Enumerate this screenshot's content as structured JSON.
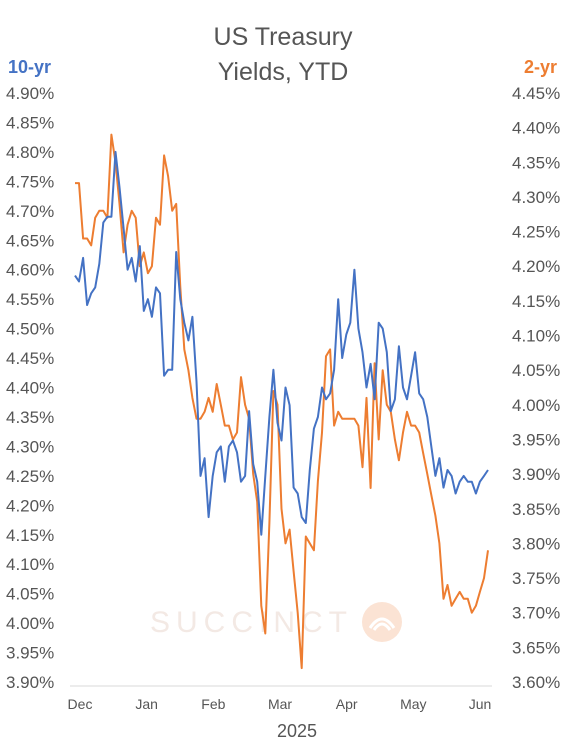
{
  "chart_data": {
    "type": "line",
    "title_lines": [
      "US Treasury",
      "Yields, YTD"
    ],
    "xlabel": "2025",
    "x_ticks": [
      "Dec",
      "Jan",
      "Feb",
      "Mar",
      "Apr",
      "May",
      "Jun"
    ],
    "watermark": "SUCCINCT",
    "left_axis": {
      "title": "10-yr",
      "ylim": [
        3.9,
        4.9
      ],
      "step": 0.05,
      "tick_labels": [
        "4.90%",
        "4.85%",
        "4.80%",
        "4.75%",
        "4.70%",
        "4.65%",
        "4.60%",
        "4.55%",
        "4.50%",
        "4.45%",
        "4.40%",
        "4.35%",
        "4.30%",
        "4.25%",
        "4.20%",
        "4.15%",
        "4.10%",
        "4.05%",
        "4.00%",
        "3.95%",
        "3.90%"
      ]
    },
    "right_axis": {
      "title": "2-yr",
      "ylim": [
        3.6,
        4.45
      ],
      "step": 0.05,
      "tick_labels": [
        "4.45%",
        "4.40%",
        "4.35%",
        "4.30%",
        "4.25%",
        "4.20%",
        "4.15%",
        "4.10%",
        "4.05%",
        "4.00%",
        "3.95%",
        "3.90%",
        "3.85%",
        "3.80%",
        "3.75%",
        "3.70%",
        "3.65%",
        "3.60%"
      ]
    },
    "x_range": [
      0,
      102
    ],
    "series": [
      {
        "name": "10-yr",
        "axis": "left",
        "color": "#4472c4",
        "x": [
          0,
          1,
          2,
          3,
          4,
          5,
          6,
          7,
          8,
          9,
          10,
          11,
          12,
          13,
          14,
          15,
          16,
          17,
          18,
          19,
          20,
          21,
          22,
          23,
          24,
          25,
          26,
          27,
          28,
          29,
          30,
          31,
          32,
          33,
          34,
          35,
          36,
          37,
          38,
          39,
          40,
          41,
          42,
          43,
          44,
          45,
          46,
          47,
          48,
          49,
          50,
          51,
          52,
          53,
          54,
          55,
          56,
          57,
          58,
          59,
          60,
          61,
          62,
          63,
          64,
          65,
          66,
          67,
          68,
          69,
          70,
          71,
          72,
          73,
          74,
          75,
          76,
          77,
          78,
          79,
          80,
          81,
          82,
          83,
          84,
          85,
          86,
          87,
          88,
          89,
          90,
          91,
          92,
          93,
          94,
          95,
          96,
          97,
          98,
          99,
          100,
          101,
          102
        ],
        "values": [
          4.59,
          4.58,
          4.62,
          4.54,
          4.56,
          4.57,
          4.61,
          4.68,
          4.69,
          4.69,
          4.8,
          4.74,
          4.67,
          4.6,
          4.62,
          4.58,
          4.64,
          4.53,
          4.55,
          4.52,
          4.57,
          4.56,
          4.42,
          4.43,
          4.43,
          4.63,
          4.55,
          4.51,
          4.48,
          4.52,
          4.41,
          4.25,
          4.28,
          4.18,
          4.25,
          4.29,
          4.3,
          4.24,
          4.3,
          4.31,
          4.29,
          4.24,
          4.25,
          4.36,
          4.27,
          4.24,
          4.15,
          4.25,
          4.35,
          4.43,
          4.34,
          4.31,
          4.4,
          4.37,
          4.23,
          4.22,
          4.18,
          4.17,
          4.26,
          4.33,
          4.35,
          4.4,
          4.38,
          4.39,
          4.43,
          4.55,
          4.45,
          4.49,
          4.51,
          4.6,
          4.5,
          4.46,
          4.4,
          4.44,
          4.38,
          4.51,
          4.5,
          4.46,
          4.36,
          4.38,
          4.47,
          4.4,
          4.38,
          4.42,
          4.46,
          4.39,
          4.38,
          4.35,
          4.3,
          4.25,
          4.28,
          4.23,
          4.26,
          4.25,
          4.22,
          4.24,
          4.25,
          4.24,
          4.24,
          4.22,
          4.24,
          4.25,
          4.26
        ]
      },
      {
        "name": "2-yr",
        "axis": "right",
        "color": "#ed7d31",
        "x": [
          0,
          1,
          2,
          3,
          4,
          5,
          6,
          7,
          8,
          9,
          10,
          11,
          12,
          13,
          14,
          15,
          16,
          17,
          18,
          19,
          20,
          21,
          22,
          23,
          24,
          25,
          26,
          27,
          28,
          29,
          30,
          31,
          32,
          33,
          34,
          35,
          36,
          37,
          38,
          39,
          40,
          41,
          42,
          43,
          44,
          45,
          46,
          47,
          48,
          49,
          50,
          51,
          52,
          53,
          54,
          55,
          56,
          57,
          58,
          59,
          60,
          61,
          62,
          63,
          64,
          65,
          66,
          67,
          68,
          69,
          70,
          71,
          72,
          73,
          74,
          75,
          76,
          77,
          78,
          79,
          80,
          81,
          82,
          83,
          84,
          85,
          86,
          87,
          88,
          89,
          90,
          91,
          92,
          93,
          94,
          95,
          96,
          97,
          98,
          99,
          100,
          101,
          102
        ],
        "values": [
          4.32,
          4.32,
          4.24,
          4.24,
          4.23,
          4.27,
          4.28,
          4.28,
          4.27,
          4.39,
          4.35,
          4.29,
          4.22,
          4.26,
          4.28,
          4.27,
          4.2,
          4.22,
          4.19,
          4.2,
          4.27,
          4.26,
          4.36,
          4.33,
          4.28,
          4.29,
          4.17,
          4.08,
          4.05,
          4.01,
          3.98,
          3.98,
          3.99,
          4.01,
          3.99,
          4.03,
          4.0,
          3.97,
          3.97,
          3.95,
          3.96,
          4.04,
          4.0,
          3.98,
          3.9,
          3.86,
          3.71,
          3.67,
          3.83,
          4.02,
          4.0,
          3.85,
          3.8,
          3.82,
          3.76,
          3.7,
          3.62,
          3.81,
          3.8,
          3.79,
          3.89,
          3.96,
          4.07,
          4.08,
          3.97,
          3.99,
          3.98,
          3.98,
          3.98,
          3.98,
          3.97,
          3.91,
          4.01,
          3.88,
          4.06,
          3.95,
          4.05,
          4.0,
          3.99,
          3.95,
          3.92,
          3.96,
          3.99,
          3.97,
          3.97,
          3.96,
          3.93,
          3.9,
          3.87,
          3.84,
          3.8,
          3.72,
          3.74,
          3.71,
          3.72,
          3.73,
          3.72,
          3.72,
          3.7,
          3.71,
          3.73,
          3.75,
          3.79
        ]
      }
    ]
  }
}
